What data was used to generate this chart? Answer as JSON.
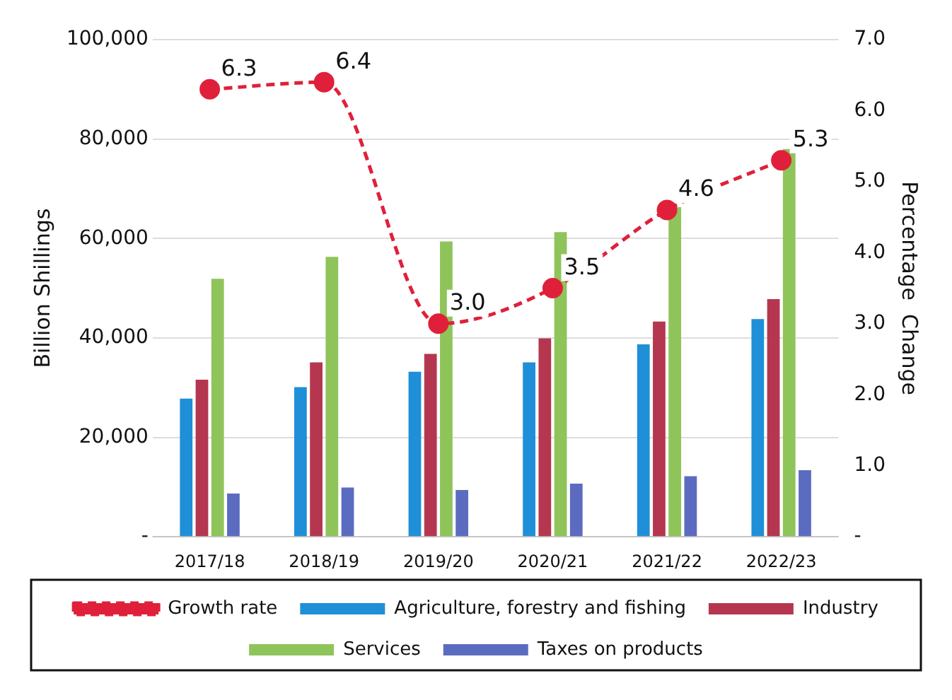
{
  "chart_data": {
    "type": "bar",
    "categories": [
      "2017/18",
      "2018/19",
      "2019/20",
      "2020/21",
      "2021/22",
      "2022/23"
    ],
    "ylabel": "Billion Shillings",
    "y2label": "Percentage  Change",
    "series": [
      {
        "name": "Agriculture, forestry and fishing",
        "color": "#1f8fd8",
        "values": [
          27800,
          30100,
          33200,
          35100,
          38700,
          43800
        ]
      },
      {
        "name": "Industry",
        "color": "#b5374f",
        "values": [
          31600,
          35100,
          36800,
          39900,
          43300,
          47800
        ]
      },
      {
        "name": "Services",
        "color": "#8fc45a",
        "values": [
          51900,
          56300,
          59400,
          61300,
          66300,
          78000
        ]
      },
      {
        "name": "Taxes on products",
        "color": "#5b6cc0",
        "values": [
          8700,
          9900,
          9400,
          10700,
          12200,
          13400
        ]
      },
      {
        "name": "Growth rate",
        "type": "line",
        "axis": "y2",
        "color": "#e0203a",
        "marker": "circle",
        "line_style": "dashed",
        "values": [
          6.3,
          6.4,
          3.0,
          3.5,
          4.6,
          5.3
        ],
        "value_labels": [
          "6.3",
          "6.4",
          "3.0",
          "3.5",
          "4.6",
          "5.3"
        ]
      }
    ],
    "ylim": [
      0,
      100000
    ],
    "yticks": [
      {
        "value": 0,
        "label": "-"
      },
      {
        "value": 20000,
        "label": "20,000"
      },
      {
        "value": 40000,
        "label": "40,000"
      },
      {
        "value": 60000,
        "label": "60,000"
      },
      {
        "value": 80000,
        "label": "80,000"
      },
      {
        "value": 100000,
        "label": "100,000"
      }
    ],
    "y2lim": [
      0,
      7
    ],
    "y2ticks": [
      {
        "value": 0,
        "label": "-"
      },
      {
        "value": 1,
        "label": "1.0"
      },
      {
        "value": 2,
        "label": "2.0"
      },
      {
        "value": 3,
        "label": "3.0"
      },
      {
        "value": 4,
        "label": "4.0"
      },
      {
        "value": 5,
        "label": "5.0"
      },
      {
        "value": 6,
        "label": "6.0"
      },
      {
        "value": 7,
        "label": "7.0"
      }
    ],
    "grid": "y",
    "legend": "bottom"
  }
}
